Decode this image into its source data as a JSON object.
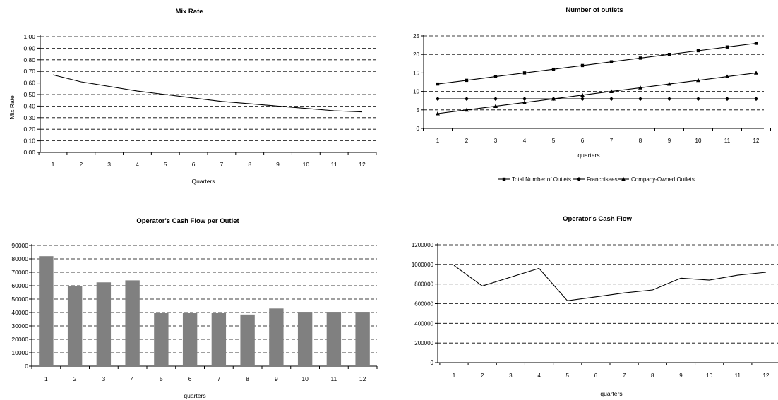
{
  "chart_data": [
    {
      "id": "mix",
      "type": "line",
      "title": "Mix  Rate",
      "xlabel": "Quarters",
      "ylabel": "Mix  Rate",
      "categories": [
        "1",
        "2",
        "3",
        "4",
        "5",
        "6",
        "7",
        "8",
        "9",
        "10",
        "11",
        "12"
      ],
      "ylim": [
        0,
        1
      ],
      "yticks": [
        "0,00",
        "0,10",
        "0,20",
        "0,30",
        "0,40",
        "0,50",
        "0,60",
        "0,70",
        "0,80",
        "0,90",
        "1,00"
      ],
      "grid": true,
      "series": [
        {
          "values": [
            0.67,
            0.61,
            0.57,
            0.53,
            0.5,
            0.47,
            0.44,
            0.42,
            0.4,
            0.38,
            0.36,
            0.35
          ]
        }
      ]
    },
    {
      "id": "outlets",
      "type": "line",
      "title": "Number of outlets",
      "xlabel": "quarters",
      "ylabel": "",
      "categories": [
        "1",
        "2",
        "3",
        "4",
        "5",
        "6",
        "7",
        "8",
        "9",
        "10",
        "11",
        "12"
      ],
      "ylim": [
        0,
        25
      ],
      "yticks": [
        "0",
        "5",
        "10",
        "15",
        "20",
        "25"
      ],
      "grid": true,
      "legend_position": "bottom",
      "series": [
        {
          "name": "Total Number of Outlets",
          "marker": "square",
          "values": [
            12,
            13,
            14,
            15,
            16,
            17,
            18,
            19,
            20,
            21,
            22,
            23
          ]
        },
        {
          "name": "Franchisees",
          "marker": "diamond",
          "values": [
            8,
            8,
            8,
            8,
            8,
            8,
            8,
            8,
            8,
            8,
            8,
            8
          ]
        },
        {
          "name": "Company-Owned Outlets",
          "marker": "triangle",
          "values": [
            4,
            5,
            6,
            7,
            8,
            9,
            10,
            11,
            12,
            13,
            14,
            15
          ]
        }
      ]
    },
    {
      "id": "cfpo",
      "type": "bar",
      "title": "Operator's Cash Flow per Outlet",
      "xlabel": "quarters",
      "ylabel": "",
      "categories": [
        "1",
        "2",
        "3",
        "4",
        "5",
        "6",
        "7",
        "8",
        "9",
        "10",
        "11",
        "12"
      ],
      "ylim": [
        0,
        90000
      ],
      "yticks": [
        "0",
        "10000",
        "20000",
        "30000",
        "40000",
        "50000",
        "60000",
        "70000",
        "80000",
        "90000"
      ],
      "grid": true,
      "color": "#808080",
      "series": [
        {
          "values": [
            82000,
            60000,
            62500,
            64000,
            39500,
            39500,
            39500,
            38500,
            43000,
            40500,
            40500,
            40500
          ]
        }
      ]
    },
    {
      "id": "cf",
      "type": "line",
      "title": "Operator's Cash Flow",
      "xlabel": "quarters",
      "ylabel": "",
      "categories": [
        "1",
        "2",
        "3",
        "4",
        "5",
        "6",
        "7",
        "8",
        "9",
        "10",
        "11",
        "12"
      ],
      "ylim": [
        0,
        1200000
      ],
      "yticks": [
        "0",
        "200000",
        "400000",
        "600000",
        "800000",
        "1000000",
        "1200000"
      ],
      "grid": true,
      "series": [
        {
          "values": [
            990000,
            780000,
            870000,
            960000,
            630000,
            670000,
            710000,
            740000,
            860000,
            840000,
            890000,
            920000
          ]
        }
      ]
    }
  ]
}
